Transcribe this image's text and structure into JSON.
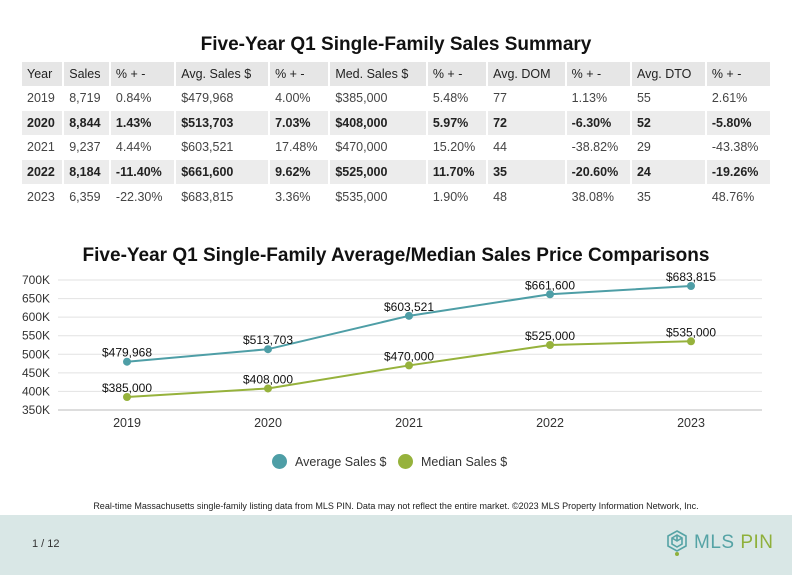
{
  "table": {
    "title": "Five-Year Q1 Single-Family Sales Summary",
    "headers": [
      "Year",
      "Sales",
      "% + -",
      "Avg. Sales $",
      "% + -",
      "Med. Sales $",
      "% + -",
      "Avg. DOM",
      "% + -",
      "Avg. DTO",
      "% + -"
    ],
    "rows": [
      {
        "cells": [
          "2019",
          "8,719",
          "0.84%",
          "$479,968",
          "4.00%",
          "$385,000",
          "5.48%",
          "77",
          "1.13%",
          "55",
          "2.61%"
        ],
        "bold": false
      },
      {
        "cells": [
          "2020",
          "8,844",
          "1.43%",
          "$513,703",
          "7.03%",
          "$408,000",
          "5.97%",
          "72",
          "-6.30%",
          "52",
          "-5.80%"
        ],
        "bold": true
      },
      {
        "cells": [
          "2021",
          "9,237",
          "4.44%",
          "$603,521",
          "17.48%",
          "$470,000",
          "15.20%",
          "44",
          "-38.82%",
          "29",
          "-43.38%"
        ],
        "bold": false
      },
      {
        "cells": [
          "2022",
          "8,184",
          "-11.40%",
          "$661,600",
          "9.62%",
          "$525,000",
          "11.70%",
          "35",
          "-20.60%",
          "24",
          "-19.26%"
        ],
        "bold": true
      },
      {
        "cells": [
          "2023",
          "6,359",
          "-22.30%",
          "$683,815",
          "3.36%",
          "$535,000",
          "1.90%",
          "48",
          "38.08%",
          "35",
          "48.76%"
        ],
        "bold": false
      }
    ]
  },
  "chart_data": {
    "type": "line",
    "title": "Five-Year Q1 Single-Family Average/Median Sales Price Comparisons",
    "x": [
      "2019",
      "2020",
      "2021",
      "2022",
      "2023"
    ],
    "ylim": [
      350000,
      700000
    ],
    "yticks": [
      350000,
      400000,
      450000,
      500000,
      550000,
      600000,
      650000,
      700000
    ],
    "ytick_labels": [
      "350K",
      "400K",
      "450K",
      "500K",
      "550K",
      "600K",
      "650K",
      "700K"
    ],
    "grid": true,
    "legend": "bottom-center",
    "series": [
      {
        "name": "Average Sales $",
        "values": [
          479968,
          513703,
          603521,
          661600,
          683815
        ],
        "labels": [
          "$479,968",
          "$513,703",
          "$603,521",
          "$661,600",
          "$683,815"
        ],
        "color": "#4e9ea6"
      },
      {
        "name": "Median Sales $",
        "values": [
          385000,
          408000,
          470000,
          525000,
          535000
        ],
        "labels": [
          "$385,000",
          "$408,000",
          "$470,000",
          "$525,000",
          "$535,000"
        ],
        "color": "#96b23c"
      }
    ]
  },
  "footnote": "Real-time Massachusetts single-family listing data from MLS PIN. Data may not reflect the entire market. ©2023 MLS Property Information Network, Inc.",
  "footer": {
    "page": "1 / 12",
    "logo_main": "MLS ",
    "logo_accent": "PIN"
  }
}
